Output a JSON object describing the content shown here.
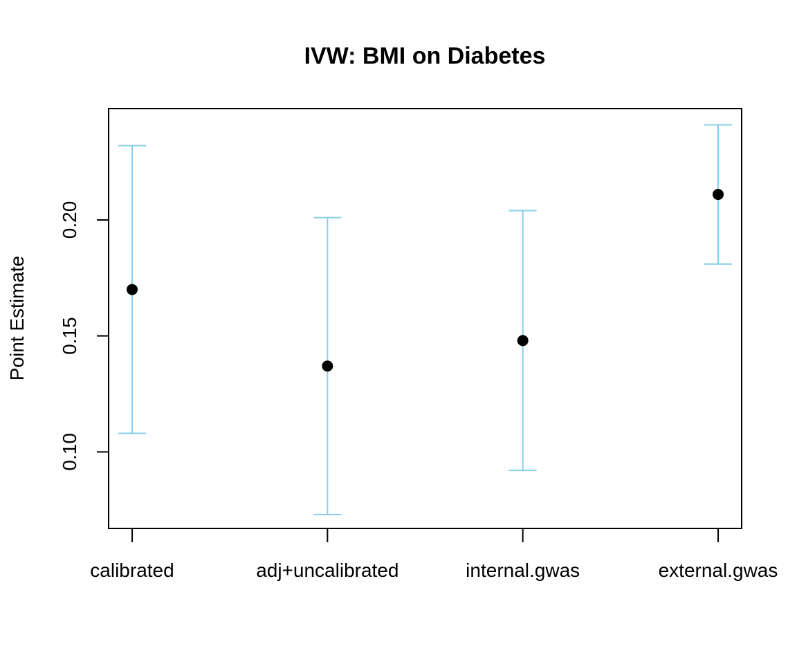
{
  "chart_data": {
    "type": "scatter",
    "title": "IVW: BMI on Diabetes",
    "xlabel": "",
    "ylabel": "Point Estimate",
    "categories": [
      "calibrated",
      "adj+uncalibrated",
      "internal.gwas",
      "external.gwas"
    ],
    "estimates": [
      0.17,
      0.137,
      0.148,
      0.211
    ],
    "lower": [
      0.108,
      0.073,
      0.092,
      0.181
    ],
    "upper": [
      0.232,
      0.201,
      0.204,
      0.241
    ],
    "ylim": [
      0.067,
      0.248
    ],
    "yticks": [
      0.1,
      0.15,
      0.2
    ],
    "ytick_labels": [
      "0.10",
      "0.15",
      "0.20"
    ],
    "grid": false,
    "legend": "none",
    "colors": {
      "errorbar": "#87CEEB",
      "point": "#000000",
      "axis": "#000000"
    }
  }
}
